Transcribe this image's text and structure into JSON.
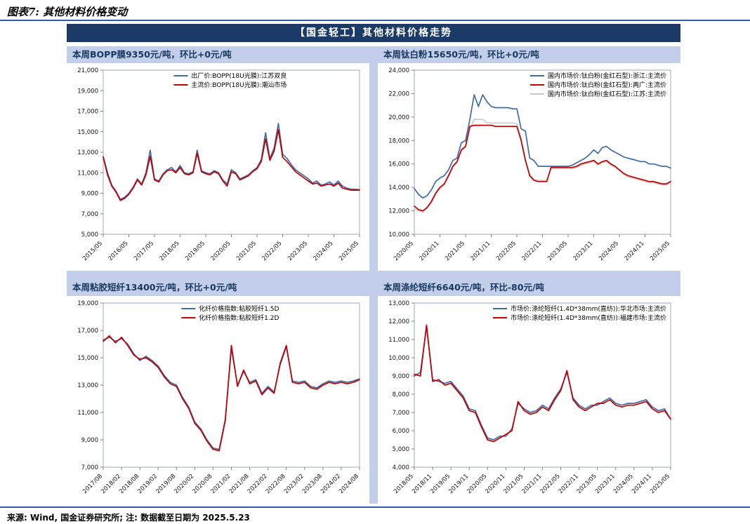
{
  "figure": {
    "title": "图表7: 其他材料价格变动"
  },
  "panel": {
    "header": "【国金轻工】其他材料价格走势"
  },
  "footer": {
    "text": "来源: Wind, 国金证券研究所; 注: 数据截至日期为 2025.5.23"
  },
  "colors": {
    "header_bg": "#1B3A68",
    "title_bar_bg": "#C2CEEA",
    "rule": "#3A57A7",
    "blue": "#3F6BA6",
    "red": "#C00000",
    "gray": "#C8C8C8",
    "axis": "#9FA8B8"
  },
  "chart_data": [
    {
      "type": "line",
      "title": "本周BOPP膜9350元/吨，环比+0元/吨",
      "ylim": [
        5000,
        21000
      ],
      "ytick": 2000,
      "legend_pos": "center",
      "draw_order": [
        0,
        1
      ],
      "x_labels": [
        "2015/05",
        "2016/05",
        "2017/05",
        "2018/05",
        "2019/05",
        "2020/05",
        "2021/05",
        "2022/05",
        "2023/05",
        "2024/05",
        "2025/05"
      ],
      "series": [
        {
          "name": "出厂价:BOPP(18U光膜):江苏双良",
          "color": "#3F6BA6",
          "width": 1.7,
          "values": [
            12600,
            11000,
            9800,
            9200,
            8400,
            8600,
            9000,
            9600,
            10400,
            9900,
            11000,
            13200,
            10400,
            10200,
            10900,
            11300,
            11500,
            11100,
            11700,
            11000,
            10900,
            11100,
            13200,
            11200,
            11000,
            10900,
            11200,
            11000,
            10300,
            9900,
            11300,
            11000,
            10400,
            10600,
            10800,
            11200,
            11500,
            12300,
            14900,
            12400,
            13400,
            15800,
            12800,
            12400,
            11800,
            11300,
            11000,
            10700,
            10400,
            10000,
            10200,
            9800,
            9900,
            10100,
            9800,
            10200,
            9700,
            9500,
            9400,
            9400,
            9350
          ]
        },
        {
          "name": "主流价:BOPP(18U光膜):潮汕市场",
          "color": "#C00000",
          "width": 1.7,
          "values": [
            12500,
            10800,
            9700,
            9100,
            8300,
            8500,
            8900,
            9500,
            10300,
            9800,
            10800,
            12600,
            10300,
            10100,
            10800,
            11200,
            11300,
            11000,
            11500,
            10900,
            10800,
            11000,
            12900,
            11100,
            10900,
            10800,
            11100,
            10900,
            10200,
            9700,
            11100,
            10900,
            10300,
            10500,
            10700,
            11100,
            11400,
            12100,
            14300,
            12200,
            13100,
            15200,
            12500,
            12100,
            11600,
            11100,
            10800,
            10500,
            10200,
            9900,
            10000,
            9700,
            9800,
            9900,
            9700,
            10000,
            9500,
            9400,
            9300,
            9300,
            9300
          ]
        }
      ]
    },
    {
      "type": "line",
      "title": "本周钛白粉15650元/吨，环比+0元/吨",
      "ylim": [
        10000,
        24000
      ],
      "ytick": 2000,
      "legend_pos": "right",
      "draw_order": [
        2,
        0,
        1
      ],
      "x_labels": [
        "2020/05",
        "2020/11",
        "2021/05",
        "2021/11",
        "2022/05",
        "2022/11",
        "2023/05",
        "2023/11",
        "2024/05",
        "2024/11",
        "2025/05"
      ],
      "series": [
        {
          "name": "国内市场价:钛白粉(金红石型):浙江:主流价",
          "color": "#3F6BA6",
          "width": 1.7,
          "values": [
            13900,
            13400,
            13100,
            13300,
            13800,
            14500,
            14800,
            15000,
            15500,
            16300,
            16500,
            17800,
            18000,
            19800,
            21900,
            20900,
            21900,
            21300,
            20900,
            20800,
            20800,
            20800,
            20800,
            20700,
            20700,
            19000,
            18800,
            16500,
            16300,
            15800,
            15800,
            15800,
            15800,
            15800,
            15800,
            15800,
            15800,
            15900,
            16100,
            16300,
            16500,
            16800,
            17200,
            16900,
            17400,
            17500,
            17200,
            17000,
            16800,
            16600,
            16500,
            16400,
            16300,
            16200,
            16200,
            16000,
            16000,
            15900,
            15800,
            15800,
            15650
          ]
        },
        {
          "name": "国内市场价:钛白粉(金红石型):两广:主流价",
          "color": "#C00000",
          "width": 1.7,
          "values": [
            12400,
            12100,
            12000,
            12300,
            12800,
            13500,
            14000,
            14300,
            15000,
            15800,
            16200,
            17200,
            17500,
            19200,
            19300,
            19300,
            19300,
            19300,
            19300,
            19200,
            19200,
            19200,
            19200,
            19200,
            19200,
            18000,
            16300,
            15000,
            14600,
            14500,
            14500,
            14500,
            15700,
            15700,
            15700,
            15700,
            15700,
            15700,
            15800,
            16000,
            16100,
            16200,
            16300,
            16000,
            16200,
            16300,
            16000,
            15800,
            15500,
            15200,
            15000,
            14900,
            14800,
            14700,
            14600,
            14500,
            14500,
            14400,
            14300,
            14300,
            14500
          ]
        },
        {
          "name": "国内市场价:钛白粉(金红石型):江苏:主流价",
          "color": "#C8C8C8",
          "width": 1.5,
          "values": [
            12200,
            12000,
            11900,
            12200,
            12700,
            13400,
            13900,
            14200,
            14900,
            15700,
            16100,
            17100,
            17400,
            19000,
            19800,
            19800,
            19800,
            19500,
            19500,
            19500,
            19500,
            19500,
            19500,
            19500,
            19400,
            18200,
            16400,
            15100,
            14700,
            14600,
            14600,
            14600,
            15600,
            15600,
            15600,
            15600,
            15600,
            15600,
            15700,
            15900,
            16000,
            16100,
            16200,
            15900,
            16100,
            16200,
            15900,
            15700,
            15400,
            15100,
            14900,
            14800,
            14700,
            14600,
            14500,
            14400,
            14400,
            14300,
            14200,
            14200,
            14400
          ]
        }
      ]
    },
    {
      "type": "line",
      "title": "本周粘胶短纤13400元/吨，环比+0元/吨",
      "ylim": [
        7000,
        19000
      ],
      "ytick": 2000,
      "legend_pos": "center",
      "draw_order": [
        0,
        1
      ],
      "x_labels": [
        "2017/08",
        "2018/02",
        "2018/08",
        "2019/02",
        "2019/08",
        "2020/02",
        "2020/08",
        "2021/02",
        "2021/08",
        "2022/02",
        "2022/08",
        "2023/02",
        "2023/08",
        "2024/02",
        "2024/08"
      ],
      "series": [
        {
          "name": "化纤价格指数:粘胶短纤1.5D",
          "color": "#3F6BA6",
          "width": 1.7,
          "values": [
            16300,
            16500,
            16200,
            16400,
            16000,
            15300,
            14800,
            15100,
            14800,
            14400,
            13700,
            13200,
            13000,
            12100,
            11400,
            10300,
            9800,
            9000,
            8400,
            8300,
            10500,
            15700,
            13000,
            14000,
            13200,
            13400,
            12400,
            12900,
            12500,
            14500,
            15800,
            13300,
            13200,
            13300,
            12900,
            12800,
            13100,
            13300,
            13200,
            13300,
            13200,
            13300,
            13450
          ]
        },
        {
          "name": "化纤价格指数:粘胶短纤1.2D",
          "color": "#C00000",
          "width": 1.7,
          "values": [
            16200,
            16600,
            16100,
            16500,
            15900,
            15200,
            14900,
            15000,
            14700,
            14300,
            13600,
            13100,
            12900,
            12000,
            11300,
            10200,
            9700,
            8900,
            8300,
            8200,
            10400,
            15900,
            12900,
            14100,
            13100,
            13300,
            12300,
            12800,
            12400,
            14600,
            15900,
            13200,
            13100,
            13200,
            12800,
            12700,
            13000,
            13200,
            13100,
            13200,
            13100,
            13200,
            13400
          ]
        }
      ]
    },
    {
      "type": "line",
      "title": "本周涤纶短纤6640元/吨，环比-80元/吨",
      "ylim": [
        4000,
        13000
      ],
      "ytick": 1000,
      "legend_pos": "right",
      "draw_order": [
        0,
        1
      ],
      "x_labels": [
        "2018/05",
        "2018/11",
        "2019/05",
        "2019/11",
        "2020/05",
        "2020/11",
        "2021/05",
        "2021/11",
        "2022/05",
        "2022/11",
        "2023/05",
        "2023/11",
        "2024/05",
        "2024/11",
        "2025/05"
      ],
      "series": [
        {
          "name": "市场价:涤纶短纤(1.4D*38mm(直纺)):华北市场:主流价",
          "color": "#3F6BA6",
          "width": 1.7,
          "values": [
            9000,
            9200,
            11700,
            8800,
            8700,
            8600,
            8700,
            8300,
            7900,
            7200,
            7100,
            6300,
            5600,
            5500,
            5700,
            5700,
            6100,
            7500,
            7200,
            7000,
            7100,
            7400,
            7200,
            7800,
            8300,
            9200,
            7800,
            7400,
            7200,
            7400,
            7400,
            7600,
            7800,
            7500,
            7400,
            7500,
            7500,
            7600,
            7700,
            7300,
            7100,
            7200,
            6640
          ]
        },
        {
          "name": "市场价:涤纶短纤(1.4D*38mm(直纺)):福建市场:主流价",
          "color": "#C00000",
          "width": 1.7,
          "values": [
            9100,
            9000,
            11800,
            8700,
            8800,
            8500,
            8600,
            8200,
            7800,
            7100,
            7000,
            6200,
            5500,
            5400,
            5600,
            5800,
            6000,
            7600,
            7100,
            6900,
            7000,
            7300,
            7100,
            7700,
            8200,
            9300,
            7700,
            7300,
            7100,
            7300,
            7500,
            7500,
            7700,
            7400,
            7300,
            7400,
            7400,
            7500,
            7600,
            7200,
            7000,
            7100,
            6640
          ]
        }
      ]
    }
  ]
}
